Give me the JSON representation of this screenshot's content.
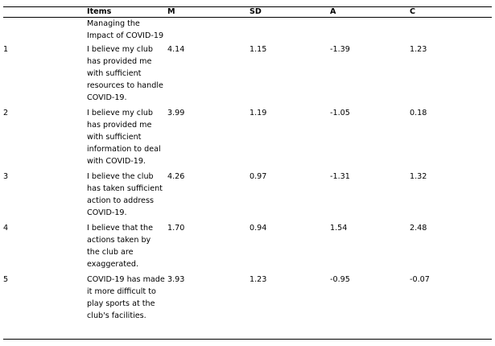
{
  "headers": {
    "index": "",
    "items": "Items",
    "m": "M",
    "sd": "SD",
    "a": "A",
    "c": "C"
  },
  "group_label": "Managing the Impact of COVID-19",
  "rows": [
    {
      "index": "1",
      "item": "I believe my club has provided me with sufficient resources to handle COVID-19.",
      "m": "4.14",
      "sd": "1.15",
      "a": "-1.39",
      "c": "1.23"
    },
    {
      "index": "2",
      "item": "I believe my club has provided me with sufficient information to deal with COVID-19.",
      "m": "3.99",
      "sd": "1.19",
      "a": "-1.05",
      "c": "0.18"
    },
    {
      "index": "3",
      "item": "I believe the club has taken sufficient action to address COVID-19.",
      "m": "4.26",
      "sd": "0.97",
      "a": "-1.31",
      "c": "1.32"
    },
    {
      "index": "4",
      "item": "I believe that the actions taken by the club are exaggerated.",
      "m": "1.70",
      "sd": "0.94",
      "a": "1.54",
      "c": "2.48"
    },
    {
      "index": "5",
      "item": "COVID-19 has made it more difficult to play sports at the club's facilities.",
      "m": "3.93",
      "sd": "1.23",
      "a": "-0.95",
      "c": "-0.07"
    }
  ]
}
